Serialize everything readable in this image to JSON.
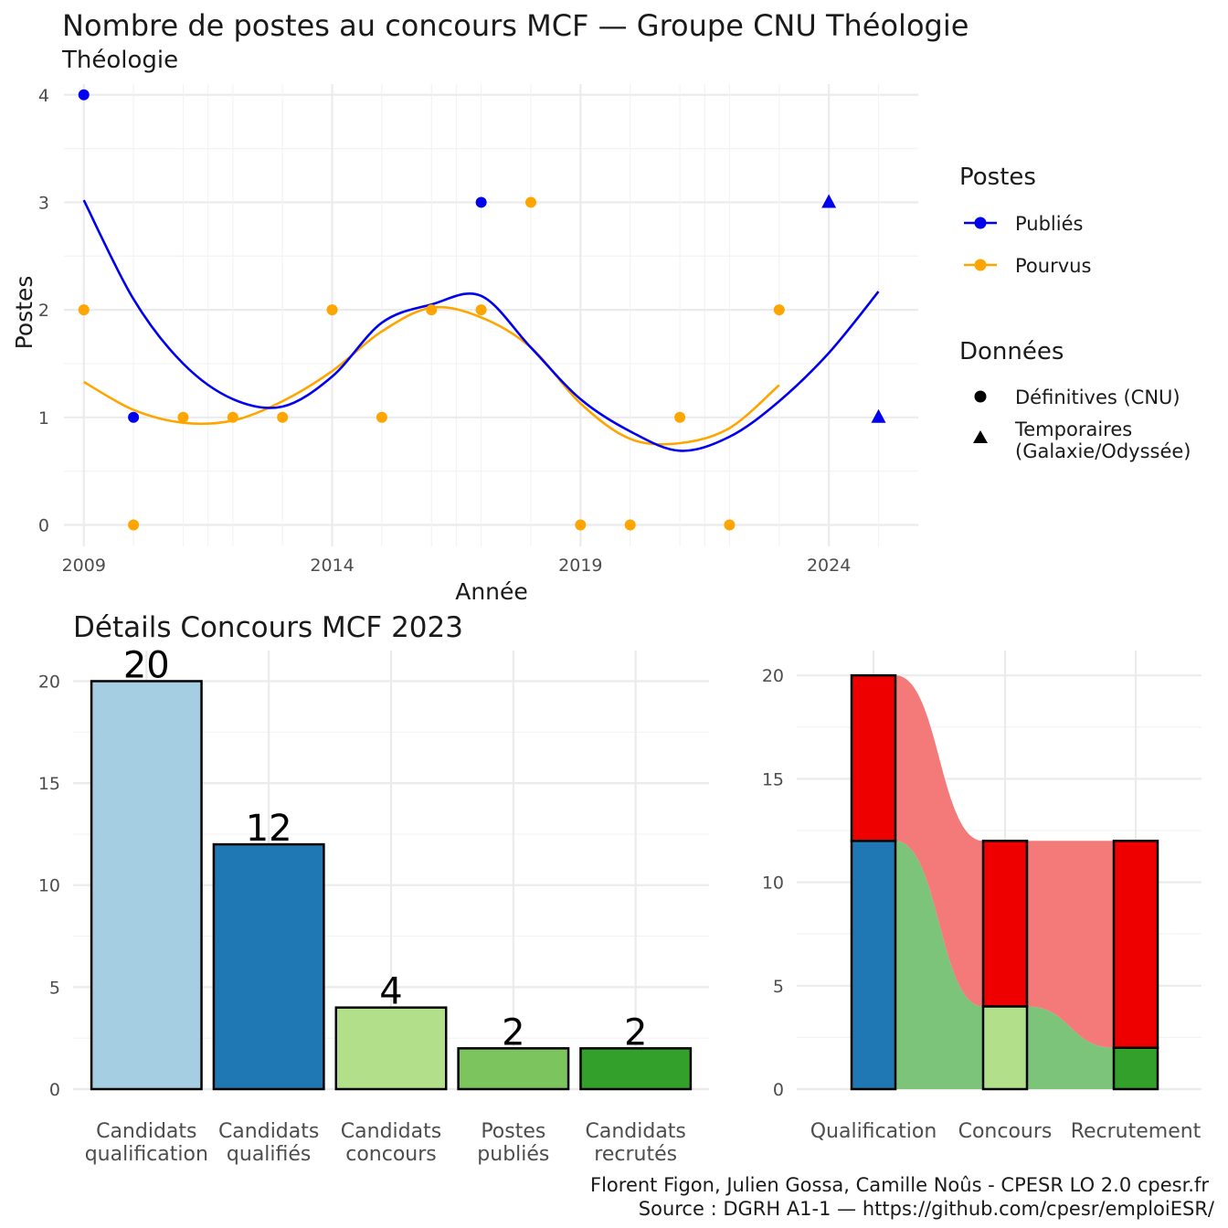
{
  "chart_data": [
    {
      "type": "scatter",
      "title": "Nombre de postes au concours MCF —  Groupe CNU Théologie",
      "subtitle": "Théologie",
      "xlabel": "Année",
      "ylabel": "Postes",
      "xlim": [
        2008.6,
        2025.8
      ],
      "ylim": [
        -0.2,
        4.1
      ],
      "x_ticks": [
        2009,
        2014,
        2019,
        2024
      ],
      "x_tick_labels": [
        "2009",
        "2014",
        "2019",
        "2024"
      ],
      "y_ticks": [
        0,
        1,
        2,
        3,
        4
      ],
      "y_tick_labels": [
        "0",
        "1",
        "2",
        "3",
        "4"
      ],
      "grid": true,
      "legend": {
        "placement": "right",
        "color_title": "Postes",
        "shape_title": "Données",
        "shape_entries": [
          {
            "label": "Définitives (CNU)",
            "shape": "circle"
          },
          {
            "label_lines": [
              "Temporaires",
              "(Galaxie/Odyssée)"
            ],
            "shape": "triangle"
          }
        ]
      },
      "series": [
        {
          "name": "Publiés",
          "color": "#0000ee",
          "points": [
            {
              "x": 2009,
              "y": 4,
              "shape": "circle"
            },
            {
              "x": 2010,
              "y": 1,
              "shape": "circle"
            },
            {
              "x": 2017,
              "y": 3,
              "shape": "circle"
            },
            {
              "x": 2024,
              "y": 3,
              "shape": "triangle"
            },
            {
              "x": 2025,
              "y": 1,
              "shape": "triangle"
            }
          ],
          "smooth": {
            "x": [
              2009,
              2010,
              2011,
              2012,
              2013,
              2014,
              2015,
              2016,
              2017,
              2018,
              2019,
              2020,
              2021,
              2022,
              2023,
              2024,
              2025
            ],
            "y": [
              3.02,
              2.1,
              1.5,
              1.17,
              1.1,
              1.38,
              1.88,
              2.05,
              2.13,
              1.65,
              1.17,
              0.87,
              0.69,
              0.82,
              1.15,
              1.6,
              2.17
            ]
          }
        },
        {
          "name": "Pourvus",
          "color": "#ffa500",
          "points": [
            {
              "x": 2009,
              "y": 2,
              "shape": "circle"
            },
            {
              "x": 2010,
              "y": 0,
              "shape": "circle"
            },
            {
              "x": 2011,
              "y": 1,
              "shape": "circle"
            },
            {
              "x": 2012,
              "y": 1,
              "shape": "circle"
            },
            {
              "x": 2013,
              "y": 1,
              "shape": "circle"
            },
            {
              "x": 2014,
              "y": 2,
              "shape": "circle"
            },
            {
              "x": 2015,
              "y": 1,
              "shape": "circle"
            },
            {
              "x": 2016,
              "y": 2,
              "shape": "circle"
            },
            {
              "x": 2017,
              "y": 2,
              "shape": "circle"
            },
            {
              "x": 2018,
              "y": 3,
              "shape": "circle"
            },
            {
              "x": 2019,
              "y": 0,
              "shape": "circle"
            },
            {
              "x": 2020,
              "y": 0,
              "shape": "circle"
            },
            {
              "x": 2021,
              "y": 1,
              "shape": "circle"
            },
            {
              "x": 2022,
              "y": 0,
              "shape": "circle"
            },
            {
              "x": 2023,
              "y": 2,
              "shape": "circle"
            }
          ],
          "smooth": {
            "x": [
              2009,
              2010,
              2011,
              2012,
              2013,
              2014,
              2015,
              2016,
              2017,
              2018,
              2019,
              2020,
              2021,
              2022,
              2023
            ],
            "y": [
              1.33,
              1.07,
              0.95,
              0.97,
              1.15,
              1.43,
              1.8,
              2.02,
              1.93,
              1.65,
              1.13,
              0.8,
              0.76,
              0.9,
              1.3
            ]
          }
        }
      ]
    },
    {
      "type": "bar",
      "title": "Détails Concours MCF 2023",
      "categories": [
        {
          "lines": [
            "Candidats",
            "qualification"
          ]
        },
        {
          "lines": [
            "Candidats",
            "qualifiés"
          ]
        },
        {
          "lines": [
            "Candidats",
            "concours"
          ]
        },
        {
          "lines": [
            "Postes",
            "publiés"
          ]
        },
        {
          "lines": [
            "Candidats",
            "recrutés"
          ]
        }
      ],
      "values": [
        20,
        12,
        4,
        2,
        2
      ],
      "value_labels": [
        "20",
        "12",
        "4",
        "2",
        "2"
      ],
      "colors": [
        "#a6cee3",
        "#1f78b4",
        "#b2df8a",
        "#7bc45e",
        "#33a02c"
      ],
      "ylim": [
        0,
        21.5
      ],
      "y_ticks": [
        0,
        5,
        10,
        15,
        20
      ],
      "y_tick_labels": [
        "0",
        "5",
        "10",
        "15",
        "20"
      ],
      "grid": true
    },
    {
      "type": "bar",
      "subtype": "stacked-alluvial",
      "categories": [
        "Qualification",
        "Concours",
        "Recrutement"
      ],
      "stacks": [
        {
          "bottom": 12,
          "top": 8,
          "bottom_color": "#1f78b4",
          "top_color": "#ee0000"
        },
        {
          "bottom": 4,
          "top": 8,
          "bottom_color": "#b2df8a",
          "top_color": "#ee0000"
        },
        {
          "bottom": 2,
          "top": 10,
          "bottom_color": "#33a02c",
          "top_color": "#ee0000"
        }
      ],
      "flows": [
        {
          "color": "#7cc47a",
          "from": [
            0,
            12
          ],
          "to": [
            0,
            4
          ],
          "then_to": [
            0,
            2
          ]
        },
        {
          "color": "#f47a7a",
          "from": [
            12,
            20
          ],
          "to": [
            4,
            12
          ],
          "then_to": [
            2,
            12
          ]
        }
      ],
      "ylim": [
        -0.4,
        21.2
      ],
      "y_ticks": [
        0,
        5,
        10,
        15,
        20
      ],
      "y_tick_labels": [
        "0",
        "5",
        "10",
        "15",
        "20"
      ],
      "grid": true
    }
  ],
  "caption": {
    "line1": "Florent Figon, Julien Gossa, Camille Noûs - CPESR LO 2.0 cpesr.fr",
    "line2": "Source : DGRH A1-1 — https://github.com/cpesr/emploiESR/"
  }
}
